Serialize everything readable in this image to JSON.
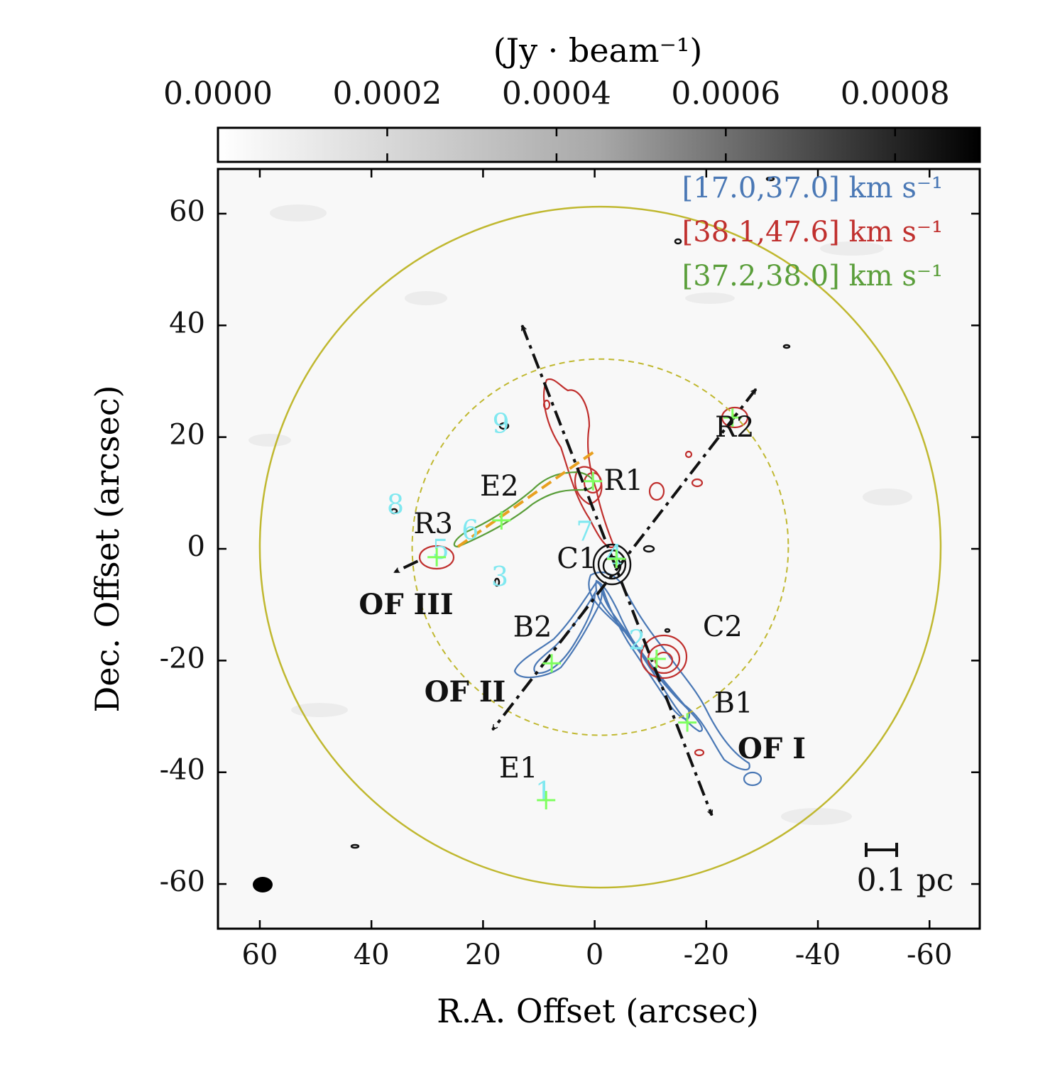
{
  "chart_data": {
    "type": "map",
    "xlabel": "R.A. Offset (arcsec)",
    "ylabel": "Dec. Offset (arcsec)",
    "xlim": [
      67.5,
      -69
    ],
    "ylim": [
      -68,
      68
    ],
    "xticks": [
      60,
      40,
      20,
      0,
      -20,
      -40,
      -60
    ],
    "yticks": [
      60,
      40,
      20,
      0,
      -20,
      -40,
      -60
    ],
    "colorbar": {
      "label": "(Jy · beam⁻¹)",
      "lim": [
        0,
        0.0009
      ],
      "ticks": [
        {
          "value": 0,
          "label": "0.0000"
        },
        {
          "value": 0.0002,
          "label": "0.0002"
        },
        {
          "value": 0.0004,
          "label": "0.0004"
        },
        {
          "value": 0.0006,
          "label": "0.0006"
        },
        {
          "value": 0.0008,
          "label": "0.0008"
        }
      ]
    },
    "series": [
      {
        "name": "[17.0,37.0] km s⁻¹",
        "color": "#4a78b5"
      },
      {
        "name": "[38.1,47.6] km s⁻¹",
        "color": "#c0302e"
      },
      {
        "name": "[37.2,38.0] km s⁻¹",
        "color": "#5a9e3a"
      }
    ],
    "sources": {
      "names": [
        "R2",
        "R1",
        "E2",
        "R3",
        "C1",
        "C2",
        "B2",
        "B1",
        "E1"
      ],
      "x": [
        -24.7,
        0.3,
        16.7,
        28.3,
        -3.9,
        -11.1,
        7.7,
        -16.6,
        8.7
      ],
      "y": [
        23.5,
        12.1,
        5.1,
        -1.5,
        -1.8,
        -19.7,
        -20.5,
        -31.1,
        -45.0
      ],
      "color": "#7fff5f"
    },
    "cores": {
      "labels": [
        "1",
        "2",
        "3",
        "4",
        "5",
        "6",
        "7",
        "8",
        "9"
      ],
      "x": [
        9.1,
        -7.6,
        17.0,
        -3.6,
        27.6,
        22.3,
        1.8,
        35.7,
        16.8
      ],
      "y": [
        -43.9,
        -16.8,
        -5.4,
        -1.5,
        -0.6,
        2.9,
        2.7,
        7.5,
        22.0
      ],
      "color": "#80e8f0"
    },
    "annotations": [
      "OF I",
      "OF II",
      "OF III"
    ],
    "scale_bar": "0.1 pc"
  }
}
